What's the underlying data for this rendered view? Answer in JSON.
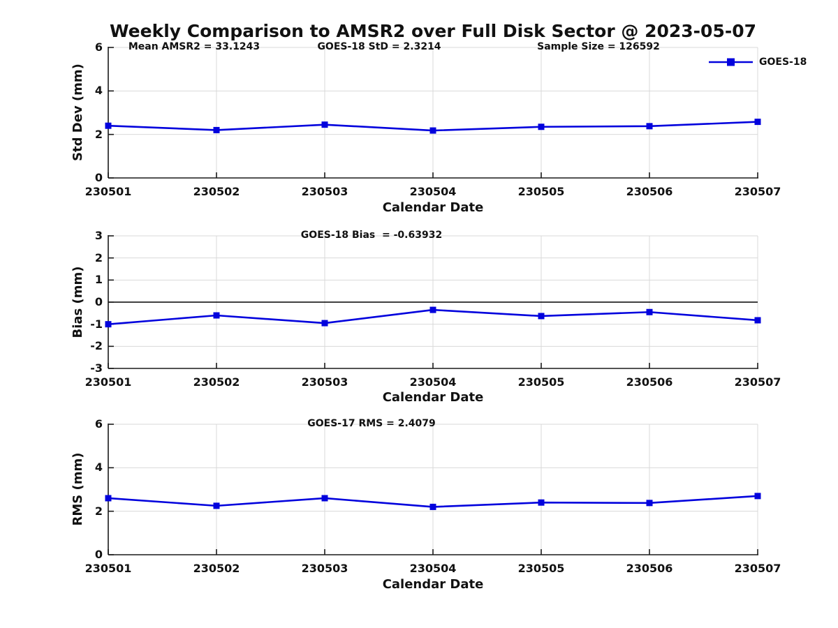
{
  "title": "Weekly Comparison to AMSR2 over Full Disk Sector @ 2023-05-07",
  "colors": {
    "series_blue": "#0202dd",
    "grid": "#d9d9d9",
    "axis": "#1a1a1a",
    "zero_line": "#000000"
  },
  "chart_data": [
    {
      "type": "line",
      "ylabel": "Std Dev (mm)",
      "xlabel": "Calendar Date",
      "ylim": [
        0,
        6
      ],
      "yticks": [
        "0",
        "2",
        "4",
        "6"
      ],
      "categories": [
        "230501",
        "230502",
        "230503",
        "230504",
        "230505",
        "230506",
        "230507"
      ],
      "annotations": [
        "Mean AMSR2 = 33.1243",
        "GOES-18 StD = 2.3214",
        "Sample Size = 126592"
      ],
      "grid": true,
      "legend_position": "northeast-outside",
      "series": [
        {
          "name": "GOES-18",
          "color": "#0202dd",
          "marker": "square",
          "values": [
            2.4,
            2.2,
            2.45,
            2.18,
            2.35,
            2.38,
            2.58
          ]
        }
      ]
    },
    {
      "type": "line",
      "ylabel": "Bias (mm)",
      "xlabel": "Calendar Date",
      "ylim": [
        -3,
        3
      ],
      "yticks": [
        "-3",
        "-2",
        "-1",
        "0",
        "1",
        "2",
        "3"
      ],
      "categories": [
        "230501",
        "230502",
        "230503",
        "230504",
        "230505",
        "230506",
        "230507"
      ],
      "annotations": [
        "GOES-18 Bias  = -0.63932"
      ],
      "grid": true,
      "zero_line": true,
      "series": [
        {
          "name": "GOES-18",
          "color": "#0202dd",
          "marker": "square",
          "values": [
            -1.0,
            -0.6,
            -0.95,
            -0.35,
            -0.63,
            -0.45,
            -0.82
          ]
        }
      ]
    },
    {
      "type": "line",
      "ylabel": "RMS (mm)",
      "xlabel": "Calendar Date",
      "ylim": [
        0,
        6
      ],
      "yticks": [
        "0",
        "2",
        "4",
        "6"
      ],
      "categories": [
        "230501",
        "230502",
        "230503",
        "230504",
        "230505",
        "230506",
        "230507"
      ],
      "annotations": [
        "GOES-17 RMS = 2.4079"
      ],
      "grid": true,
      "series": [
        {
          "name": "GOES-18",
          "color": "#0202dd",
          "marker": "square",
          "values": [
            2.6,
            2.25,
            2.6,
            2.2,
            2.4,
            2.38,
            2.7
          ]
        }
      ]
    }
  ]
}
